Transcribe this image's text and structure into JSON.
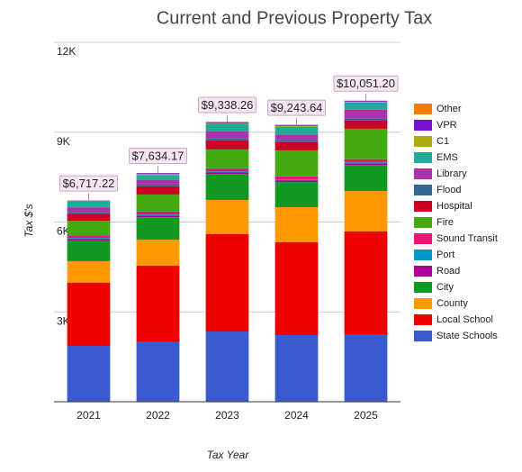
{
  "chart_data": {
    "type": "stacked_bar",
    "title": "Current and Previous Property Tax",
    "x_label": "Tax Year",
    "y_label": "Tax $'s",
    "categories": [
      "2021",
      "2022",
      "2023",
      "2024",
      "2025"
    ],
    "ylim": [
      0,
      12000
    ],
    "yticks": [
      {
        "value": 3000,
        "label": "3K"
      },
      {
        "value": 6000,
        "label": "6K"
      },
      {
        "value": 9000,
        "label": "9K"
      },
      {
        "value": 12000,
        "label": "12K"
      }
    ],
    "grid": true,
    "legend": "right",
    "total_labels": [
      "$6,717.22",
      "$7,634.17",
      "$9,338.26",
      "$9,243.64",
      "$10,051.20"
    ],
    "series": [
      {
        "name": "State Schools",
        "color": "#3a5bcf",
        "values": [
          1865,
          2015,
          2345,
          2225,
          2255
        ]
      },
      {
        "name": "Local School",
        "color": "#ee0000",
        "values": [
          2105,
          2525,
          3250,
          3100,
          3430
        ]
      },
      {
        "name": "County",
        "color": "#ff9900",
        "values": [
          720,
          870,
          1140,
          1170,
          1350
        ]
      },
      {
        "name": "City",
        "color": "#119922",
        "values": [
          690,
          750,
          870,
          840,
          870
        ]
      },
      {
        "name": "Road",
        "color": "#aa0099",
        "values": [
          60,
          60,
          60,
          60,
          60
        ]
      },
      {
        "name": "Port",
        "color": "#0099c6",
        "values": [
          30,
          30,
          30,
          30,
          30
        ]
      },
      {
        "name": "Sound Transit",
        "color": "#ee1177",
        "values": [
          90,
          100,
          100,
          100,
          100
        ]
      },
      {
        "name": "Fire",
        "color": "#44aa11",
        "values": [
          480,
          570,
          630,
          870,
          1020
        ]
      },
      {
        "name": "Hospital",
        "color": "#cc0022",
        "values": [
          240,
          270,
          300,
          270,
          270
        ]
      },
      {
        "name": "Flood",
        "color": "#336699",
        "values": [
          60,
          60,
          60,
          60,
          60
        ]
      },
      {
        "name": "Library",
        "color": "#aa33aa",
        "values": [
          150,
          150,
          250,
          200,
          300
        ]
      },
      {
        "name": "EMS",
        "color": "#22aa99",
        "values": [
          187,
          174,
          243,
          259,
          246
        ]
      },
      {
        "name": "C1",
        "color": "#aaaa11",
        "values": [
          20,
          30,
          30,
          30,
          30
        ]
      },
      {
        "name": "VPR",
        "color": "#7711cc",
        "values": [
          20,
          30,
          30,
          30,
          30
        ]
      },
      {
        "name": "Other",
        "color": "#f57c00",
        "values": [
          0,
          0,
          0,
          0,
          0
        ]
      }
    ]
  }
}
